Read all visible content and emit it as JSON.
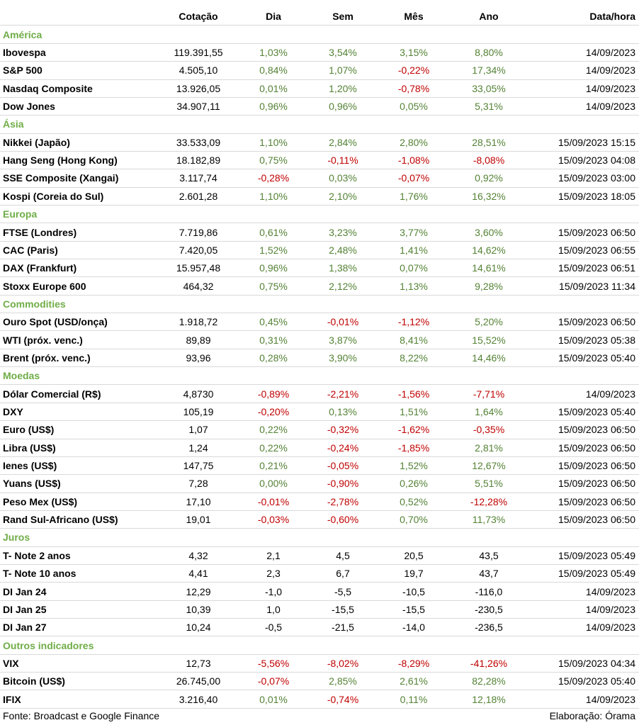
{
  "colors": {
    "positive": "#548235",
    "negative": "#c00000",
    "section": "#70ad47"
  },
  "header": [
    "",
    "Cotação",
    "Dia",
    "Sem",
    "Mês",
    "Ano",
    "Data/hora"
  ],
  "rows": [
    {
      "section": "América"
    },
    {
      "name": "Ibovespa",
      "quote": "119.391,55",
      "day": "1,03%",
      "week": "3,54%",
      "month": "3,15%",
      "year": "8,80%",
      "date": "14/09/2023"
    },
    {
      "name": "S&P 500",
      "quote": "4.505,10",
      "day": "0,84%",
      "week": "1,07%",
      "month": "-0,22%",
      "year": "17,34%",
      "date": "14/09/2023"
    },
    {
      "name": "Nasdaq Composite",
      "quote": "13.926,05",
      "day": "0,01%",
      "week": "1,20%",
      "month": "-0,78%",
      "year": "33,05%",
      "date": "14/09/2023"
    },
    {
      "name": "Dow Jones",
      "quote": "34.907,11",
      "day": "0,96%",
      "week": "0,96%",
      "month": "0,05%",
      "year": "5,31%",
      "date": "14/09/2023"
    },
    {
      "section": "Ásia"
    },
    {
      "name": "Nikkei (Japão)",
      "quote": "33.533,09",
      "day": "1,10%",
      "week": "2,84%",
      "month": "2,80%",
      "year": "28,51%",
      "date": "15/09/2023 15:15"
    },
    {
      "name": "Hang Seng (Hong Kong)",
      "quote": "18.182,89",
      "day": "0,75%",
      "week": "-0,11%",
      "month": "-1,08%",
      "year": "-8,08%",
      "date": "15/09/2023 04:08"
    },
    {
      "name": "SSE Composite (Xangai)",
      "quote": "3.117,74",
      "day": "-0,28%",
      "week": "0,03%",
      "month": "-0,07%",
      "year": "0,92%",
      "date": "15/09/2023 03:00"
    },
    {
      "name": "Kospi (Coreia do Sul)",
      "quote": "2.601,28",
      "day": "1,10%",
      "week": "2,10%",
      "month": "1,76%",
      "year": "16,32%",
      "date": "15/09/2023 18:05"
    },
    {
      "section": "Europa"
    },
    {
      "name": "FTSE (Londres)",
      "quote": "7.719,86",
      "day": "0,61%",
      "week": "3,23%",
      "month": "3,77%",
      "year": "3,60%",
      "date": "15/09/2023 06:50"
    },
    {
      "name": "CAC (Paris)",
      "quote": "7.420,05",
      "day": "1,52%",
      "week": "2,48%",
      "month": "1,41%",
      "year": "14,62%",
      "date": "15/09/2023 06:55"
    },
    {
      "name": "DAX (Frankfurt)",
      "quote": "15.957,48",
      "day": "0,96%",
      "week": "1,38%",
      "month": "0,07%",
      "year": "14,61%",
      "date": "15/09/2023 06:51"
    },
    {
      "name": "Stoxx Europe 600",
      "quote": "464,32",
      "day": "0,75%",
      "week": "2,12%",
      "month": "1,13%",
      "year": "9,28%",
      "date": "15/09/2023 11:34"
    },
    {
      "section": "Commodities"
    },
    {
      "name": "Ouro Spot (USD/onça)",
      "quote": "1.918,72",
      "day": "0,45%",
      "week": "-0,01%",
      "month": "-1,12%",
      "year": "5,20%",
      "date": "15/09/2023 06:50"
    },
    {
      "name": "WTI (próx. venc.)",
      "quote": "89,89",
      "day": "0,31%",
      "week": "3,87%",
      "month": "8,41%",
      "year": "15,52%",
      "date": "15/09/2023 05:38"
    },
    {
      "name": "Brent (próx. venc.)",
      "quote": "93,96",
      "day": "0,28%",
      "week": "3,90%",
      "month": "8,22%",
      "year": "14,46%",
      "date": "15/09/2023 05:40"
    },
    {
      "section": "Moedas"
    },
    {
      "name": "Dólar Comercial (R$)",
      "quote": "4,8730",
      "day": "-0,89%",
      "week": "-2,21%",
      "month": "-1,56%",
      "year": "-7,71%",
      "date": "14/09/2023"
    },
    {
      "name": "DXY",
      "quote": "105,19",
      "day": "-0,20%",
      "week": "0,13%",
      "month": "1,51%",
      "year": "1,64%",
      "date": "15/09/2023 05:40"
    },
    {
      "name": "Euro (US$)",
      "quote": "1,07",
      "day": "0,22%",
      "week": "-0,32%",
      "month": "-1,62%",
      "year": "-0,35%",
      "date": "15/09/2023 06:50"
    },
    {
      "name": "Libra (US$)",
      "quote": "1,24",
      "day": "0,22%",
      "week": "-0,24%",
      "month": "-1,85%",
      "year": "2,81%",
      "date": "15/09/2023 06:50"
    },
    {
      "name": "Ienes (US$)",
      "quote": "147,75",
      "day": "0,21%",
      "week": "-0,05%",
      "month": "1,52%",
      "year": "12,67%",
      "date": "15/09/2023 06:50"
    },
    {
      "name": "Yuans (US$)",
      "quote": "7,28",
      "day": "0,00%",
      "week": "-0,90%",
      "month": "0,26%",
      "year": "5,51%",
      "date": "15/09/2023 06:50"
    },
    {
      "name": "Peso Mex (US$)",
      "quote": "17,10",
      "day": "-0,01%",
      "week": "-2,78%",
      "month": "0,52%",
      "year": "-12,28%",
      "date": "15/09/2023 06:50"
    },
    {
      "name": "Rand Sul-Africano (US$)",
      "quote": "19,01",
      "day": "-0,03%",
      "week": "-0,60%",
      "month": "0,70%",
      "year": "11,73%",
      "date": "15/09/2023 06:50"
    },
    {
      "section": "Juros"
    },
    {
      "name": "T- Note 2 anos",
      "quote": "4,32",
      "day": "2,1",
      "week": "4,5",
      "month": "20,5",
      "year": "43,5",
      "date": "15/09/2023 05:49",
      "plain": true
    },
    {
      "name": "T- Note 10 anos",
      "quote": "4,41",
      "day": "2,3",
      "week": "6,7",
      "month": "19,7",
      "year": "43,7",
      "date": "15/09/2023 05:49",
      "plain": true
    },
    {
      "name": "DI Jan 24",
      "quote": "12,29",
      "day": "-1,0",
      "week": "-5,5",
      "month": "-10,5",
      "year": "-116,0",
      "date": "14/09/2023",
      "plain": true
    },
    {
      "name": "DI Jan 25",
      "quote": "10,39",
      "day": "1,0",
      "week": "-15,5",
      "month": "-15,5",
      "year": "-230,5",
      "date": "14/09/2023",
      "plain": true
    },
    {
      "name": "DI Jan 27",
      "quote": "10,24",
      "day": "-0,5",
      "week": "-21,5",
      "month": "-14,0",
      "year": "-236,5",
      "date": "14/09/2023",
      "plain": true
    },
    {
      "section": "Outros indicadores"
    },
    {
      "name": "VIX",
      "quote": "12,73",
      "day": "-5,56%",
      "week": "-8,02%",
      "month": "-8,29%",
      "year": "-41,26%",
      "date": "15/09/2023 04:34"
    },
    {
      "name": "Bitcoin (US$)",
      "quote": "26.745,00",
      "day": "-0,07%",
      "week": "2,85%",
      "month": "2,61%",
      "year": "82,28%",
      "date": "15/09/2023 05:40"
    },
    {
      "name": "IFIX",
      "quote": "3.216,40",
      "day": "0,01%",
      "week": "-0,74%",
      "month": "0,11%",
      "year": "12,18%",
      "date": "14/09/2023"
    }
  ],
  "footer": {
    "source": "Fonte: Broadcast e Google Finance",
    "credit": "Elaboração: Órama"
  }
}
